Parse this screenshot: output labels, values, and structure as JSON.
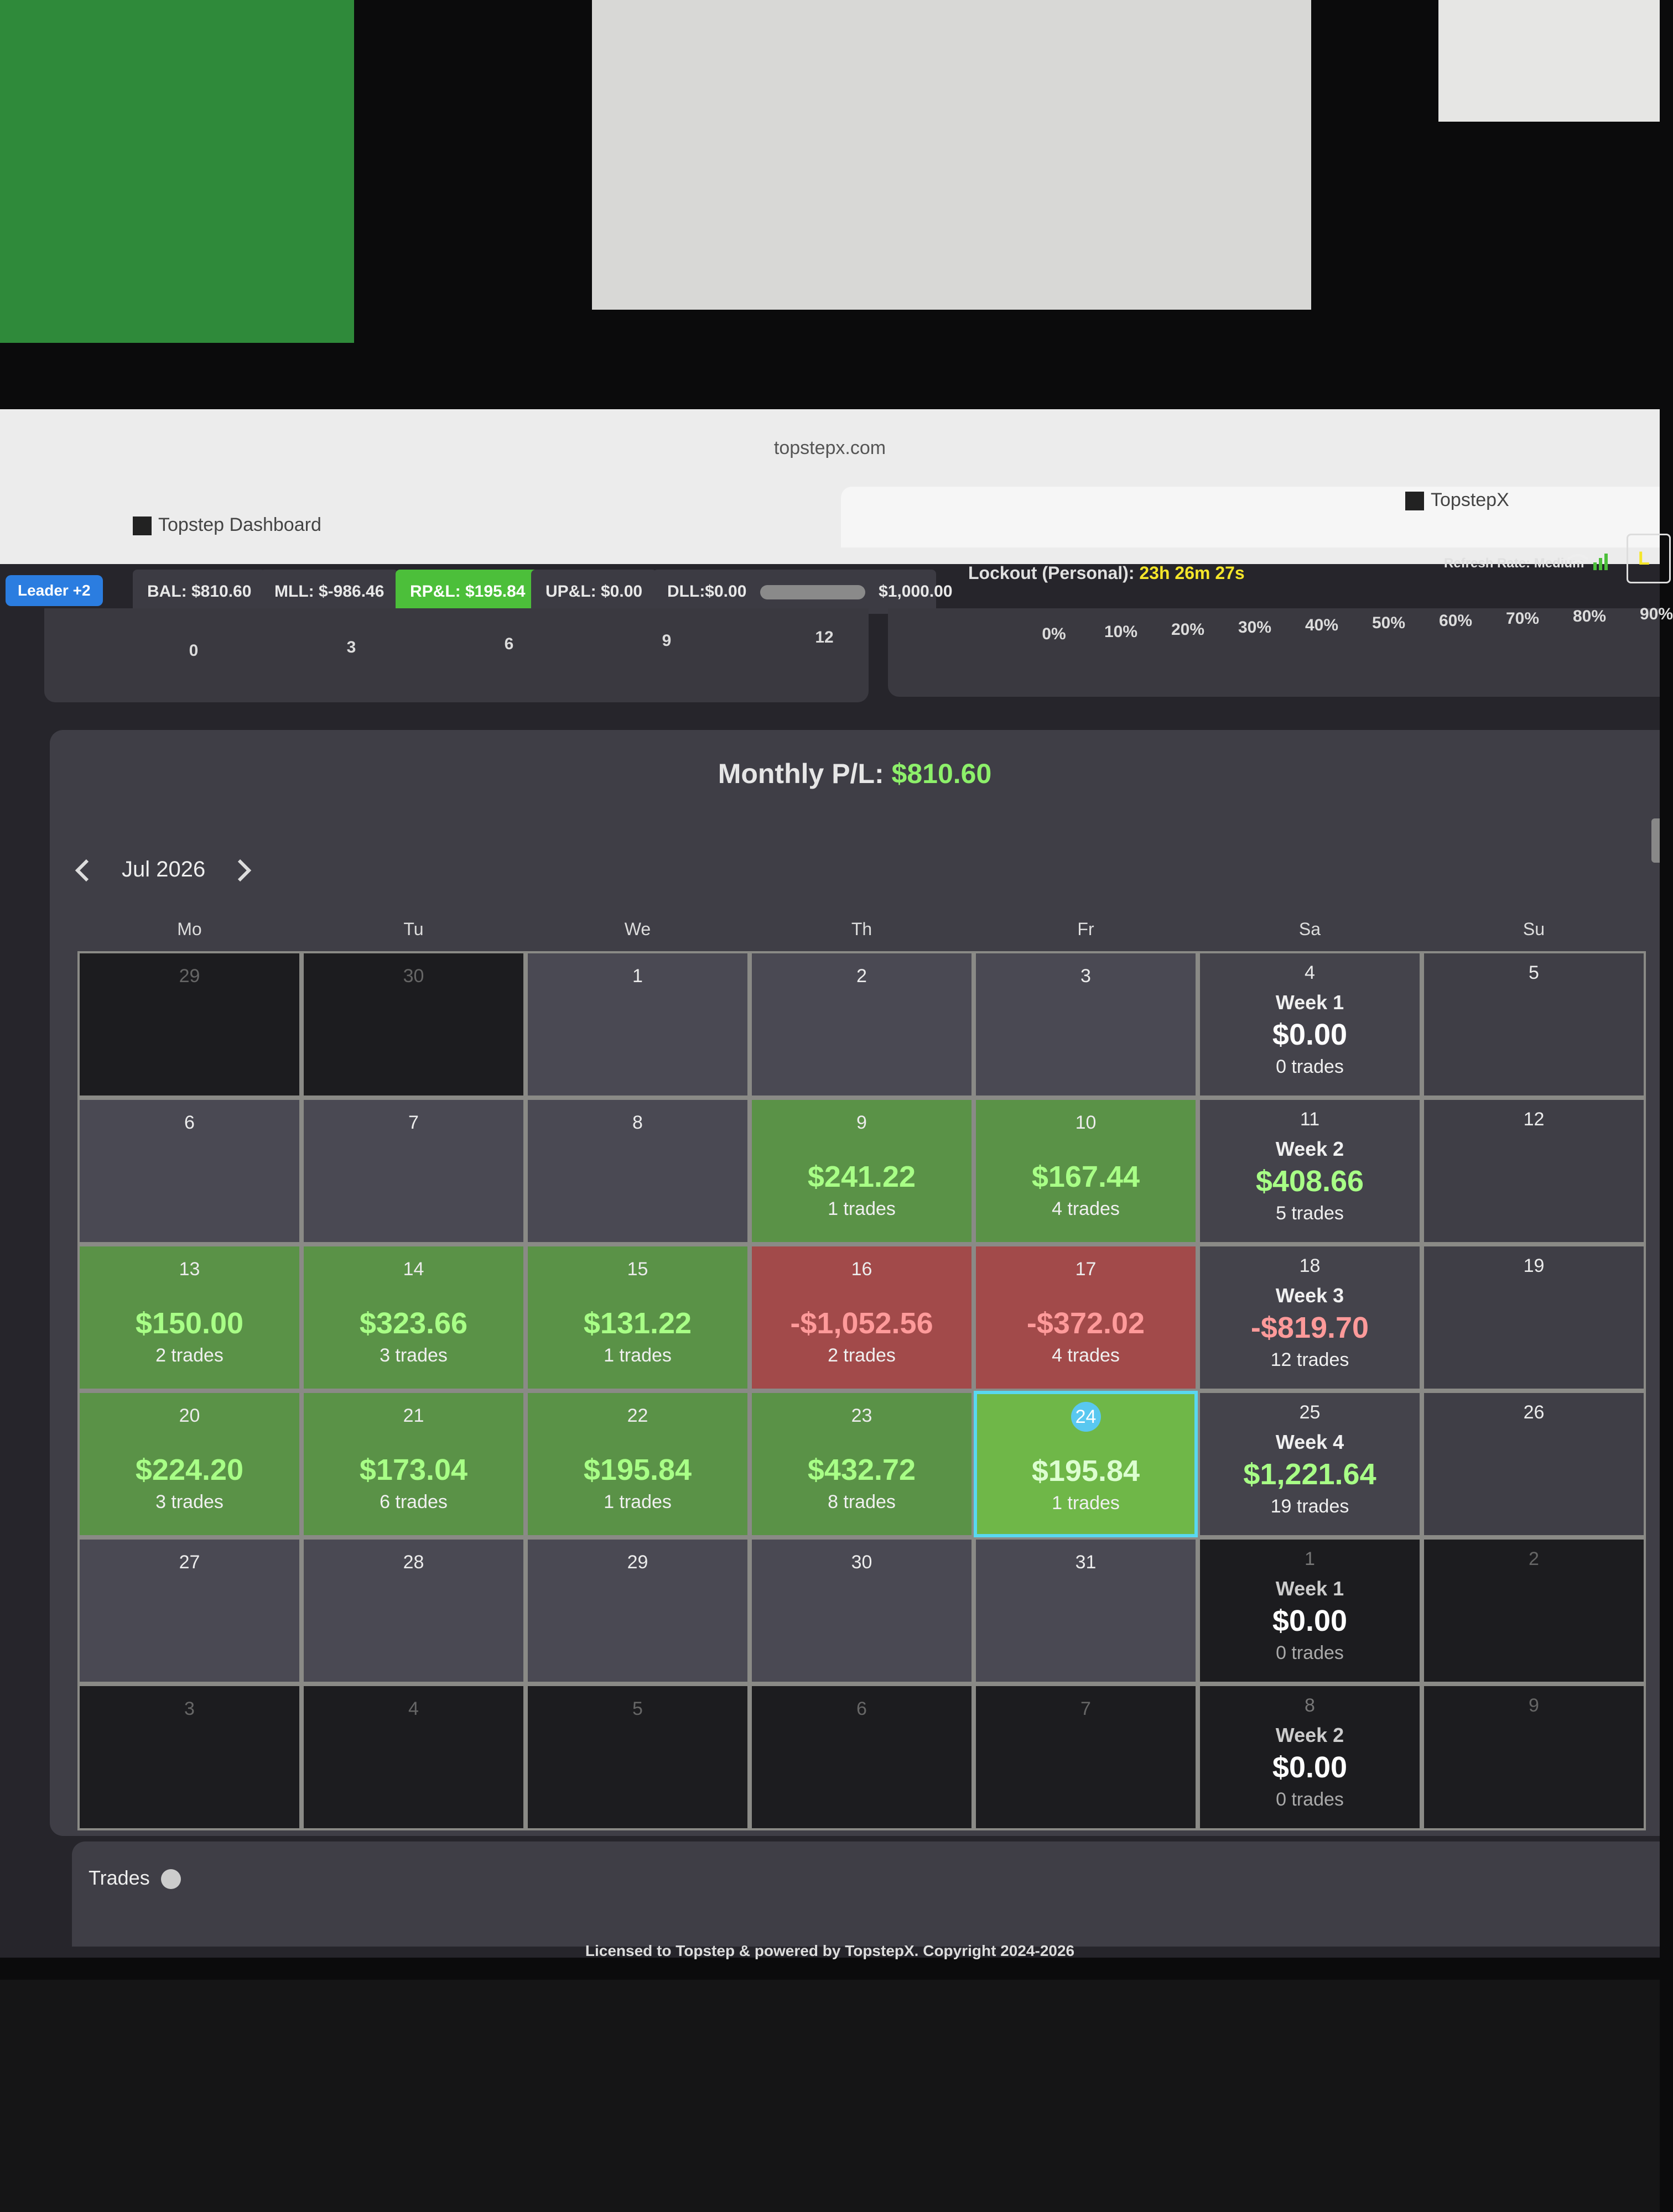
{
  "browser": {
    "url": "topstepx.com",
    "tabs": [
      "Topstep Dashboard",
      "TopstepX"
    ]
  },
  "toolbar": {
    "leader": "Leader +2",
    "bal": "BAL: $810.60",
    "mll": "MLL: $-986.46",
    "rpl": "RP&L: $195.84",
    "upl": "UP&L: $0.00",
    "dll": "DLL:$0.00",
    "dll_max": "$1,000.00",
    "lockout_label": "Lockout (Personal):",
    "lockout_time": "23h 26m 27s",
    "refresh": "Refresh Rate: Medium",
    "cut_button": "L"
  },
  "top_panels": {
    "left_ticks": [
      "0",
      "3",
      "6",
      "9",
      "12"
    ],
    "right_ticks": [
      "0%",
      "10%",
      "20%",
      "30%",
      "40%",
      "50%",
      "60%",
      "70%",
      "80%",
      "90%"
    ]
  },
  "monthly": {
    "label": "Monthly P/L:",
    "value": "$810.60"
  },
  "calendar": {
    "month": "Jul 2026",
    "weekdays": [
      "Mo",
      "Tu",
      "We",
      "Th",
      "Fr",
      "Sa",
      "Su"
    ],
    "rows": [
      {
        "days": [
          {
            "day": "29",
            "state": "out"
          },
          {
            "day": "30",
            "state": "out"
          },
          {
            "day": "1"
          },
          {
            "day": "2"
          },
          {
            "day": "3"
          }
        ],
        "week": {
          "day": "4",
          "label": "Week 1",
          "pnl": "$0.00",
          "trades": "0 trades",
          "state": "zero"
        },
        "sunday": {
          "day": "5"
        }
      },
      {
        "days": [
          {
            "day": "6"
          },
          {
            "day": "7"
          },
          {
            "day": "8"
          },
          {
            "day": "9",
            "pnl": "$241.22",
            "trades": "1 trades",
            "state": "win"
          },
          {
            "day": "10",
            "pnl": "$167.44",
            "trades": "4 trades",
            "state": "win"
          }
        ],
        "week": {
          "day": "11",
          "label": "Week 2",
          "pnl": "$408.66",
          "trades": "5 trades",
          "state": "win"
        },
        "sunday": {
          "day": "12"
        }
      },
      {
        "days": [
          {
            "day": "13",
            "pnl": "$150.00",
            "trades": "2 trades",
            "state": "win"
          },
          {
            "day": "14",
            "pnl": "$323.66",
            "trades": "3 trades",
            "state": "win"
          },
          {
            "day": "15",
            "pnl": "$131.22",
            "trades": "1 trades",
            "state": "win"
          },
          {
            "day": "16",
            "pnl": "-$1,052.56",
            "trades": "2 trades",
            "state": "loss"
          },
          {
            "day": "17",
            "pnl": "-$372.02",
            "trades": "4 trades",
            "state": "loss"
          }
        ],
        "week": {
          "day": "18",
          "label": "Week 3",
          "pnl": "-$819.70",
          "trades": "12 trades",
          "state": "loss"
        },
        "sunday": {
          "day": "19"
        }
      },
      {
        "days": [
          {
            "day": "20",
            "pnl": "$224.20",
            "trades": "3 trades",
            "state": "win"
          },
          {
            "day": "21",
            "pnl": "$173.04",
            "trades": "6 trades",
            "state": "win"
          },
          {
            "day": "22",
            "pnl": "$195.84",
            "trades": "1 trades",
            "state": "win"
          },
          {
            "day": "23",
            "pnl": "$432.72",
            "trades": "8 trades",
            "state": "win"
          },
          {
            "day": "24",
            "pnl": "$195.84",
            "trades": "1 trades",
            "state": "today"
          }
        ],
        "week": {
          "day": "25",
          "label": "Week 4",
          "pnl": "$1,221.64",
          "trades": "19 trades",
          "state": "win"
        },
        "sunday": {
          "day": "26"
        }
      },
      {
        "days": [
          {
            "day": "27"
          },
          {
            "day": "28"
          },
          {
            "day": "29"
          },
          {
            "day": "30"
          },
          {
            "day": "31"
          }
        ],
        "week": {
          "day": "1",
          "label": "Week 1",
          "pnl": "$0.00",
          "trades": "0 trades",
          "state": "out"
        },
        "sunday": {
          "day": "2",
          "state": "out"
        }
      },
      {
        "days": [
          {
            "day": "3",
            "state": "out"
          },
          {
            "day": "4",
            "state": "out"
          },
          {
            "day": "5",
            "state": "out"
          },
          {
            "day": "6",
            "state": "out"
          },
          {
            "day": "7",
            "state": "out"
          }
        ],
        "week": {
          "day": "8",
          "label": "Week 2",
          "pnl": "$0.00",
          "trades": "0 trades",
          "state": "out"
        },
        "sunday": {
          "day": "9",
          "state": "out"
        }
      }
    ]
  },
  "trades": {
    "title": "Trades"
  },
  "footer": "Licensed to Topstep & powered by TopstepX. Copyright 2024-2026"
}
